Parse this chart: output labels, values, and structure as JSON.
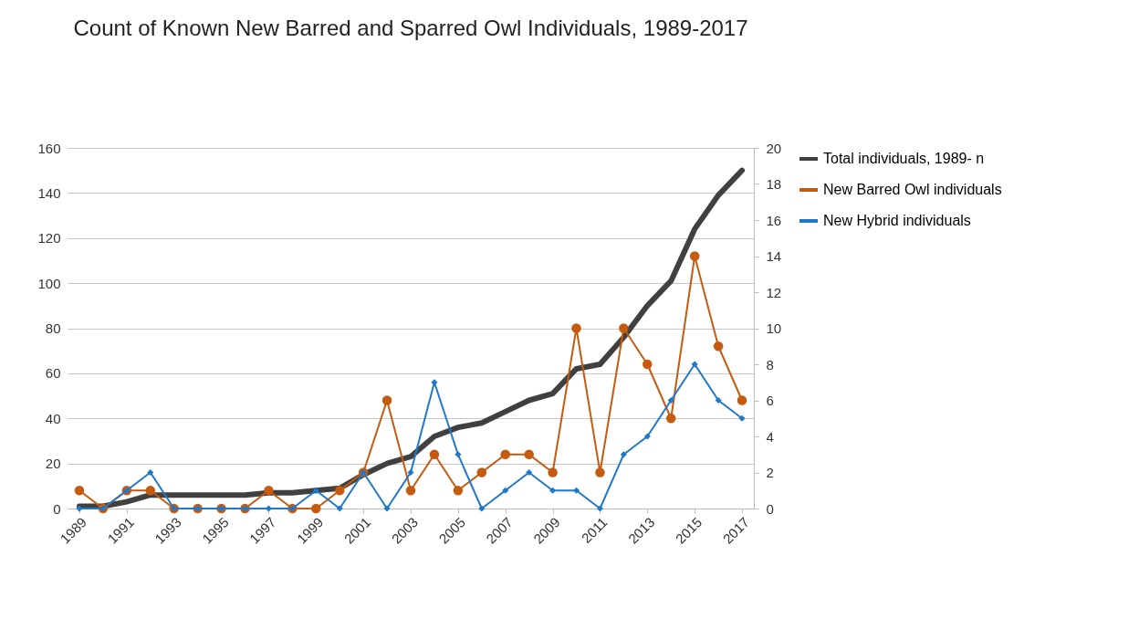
{
  "chart_data": {
    "type": "line",
    "title": "Count of Known New Barred and Sparred Owl Individuals, 1989-2017",
    "x": [
      1989,
      1990,
      1991,
      1992,
      1993,
      1994,
      1995,
      1996,
      1997,
      1998,
      1999,
      2000,
      2001,
      2002,
      2003,
      2004,
      2005,
      2006,
      2007,
      2008,
      2009,
      2010,
      2011,
      2012,
      2013,
      2014,
      2015,
      2016,
      2017
    ],
    "series": [
      {
        "name": "Total individuals, 1989- n",
        "color": "#404040",
        "marker": "none",
        "values": [
          1,
          1,
          3,
          6,
          6,
          6,
          6,
          6,
          7,
          7,
          8,
          9,
          15,
          20,
          23,
          32,
          36,
          38,
          43,
          48,
          51,
          62,
          64,
          76,
          90,
          101,
          124,
          139,
          150
        ]
      },
      {
        "name": "New Barred Owl individuals",
        "color": "#c55a11",
        "marker": "circle",
        "axis": "y2",
        "values": [
          1,
          0,
          1,
          1,
          0,
          0,
          0,
          0,
          1,
          0,
          0,
          1,
          2,
          6,
          1,
          3,
          1,
          2,
          3,
          3,
          2,
          10,
          2,
          10,
          8,
          5,
          14,
          9,
          6
        ]
      },
      {
        "name": "New Hybrid individuals",
        "color": "#1f78c8",
        "marker": "diamond",
        "axis": "y2",
        "values": [
          0,
          0,
          1,
          2,
          0,
          0,
          0,
          0,
          0,
          0,
          1,
          0,
          2,
          0,
          2,
          7,
          3,
          0,
          1,
          2,
          1,
          1,
          0,
          3,
          4,
          6,
          8,
          6,
          5
        ]
      }
    ],
    "xlim": [
      1988.5,
      2017.5
    ],
    "xticks": [
      1989,
      1991,
      1993,
      1995,
      1997,
      1999,
      2001,
      2003,
      2005,
      2007,
      2009,
      2011,
      2013,
      2015,
      2017
    ],
    "ylim": [
      0,
      160
    ],
    "yticks": [
      0,
      20,
      40,
      60,
      80,
      100,
      120,
      140,
      160
    ],
    "y2lim": [
      0,
      20
    ],
    "y2ticks": [
      0,
      2,
      4,
      6,
      8,
      10,
      12,
      14,
      16,
      18,
      20
    ],
    "grid": "y",
    "legend": "right"
  }
}
